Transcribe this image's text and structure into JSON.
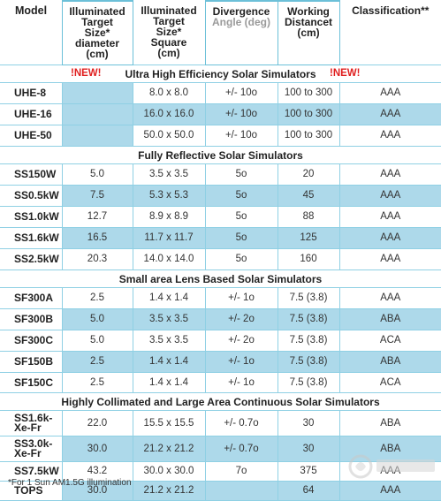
{
  "headers": {
    "model": "Model",
    "diameter": [
      "Illuminated",
      "Target",
      "Size*",
      "diameter",
      "(cm)"
    ],
    "square": [
      "Illuminated",
      "Target",
      "Size*",
      "Square",
      "(cm)"
    ],
    "divergence": [
      "Divergence"
    ],
    "divergence_gray": "Angle (deg)",
    "distance": [
      "Working",
      "Distancet",
      "(cm)"
    ],
    "classification": "Classification**"
  },
  "new_badge": "!NEW!",
  "sections": [
    {
      "title": "Ultra High Efficiency Solar Simulators",
      "new": true,
      "rows": [
        {
          "model": "UHE-8",
          "dia": "",
          "sq": "8.0 x 8.0",
          "div": "+/- 10o",
          "dist": "100 to 300",
          "cls": "AAA"
        },
        {
          "model": "UHE-16",
          "dia": "",
          "sq": "16.0 x 16.0",
          "div": "+/- 10o",
          "dist": "100 to 300",
          "cls": "AAA"
        },
        {
          "model": "UHE-50",
          "dia": "",
          "sq": "50.0 x 50.0",
          "div": "+/- 10o",
          "dist": "100 to 300",
          "cls": "AAA"
        }
      ]
    },
    {
      "title": "Fully Reflective Solar Simulators",
      "new": false,
      "rows": [
        {
          "model": "SS150W",
          "dia": "5.0",
          "sq": "3.5 x 3.5",
          "div": "5o",
          "dist": "20",
          "cls": "AAA"
        },
        {
          "model": "SS0.5kW",
          "dia": "7.5",
          "sq": "5.3 x 5.3",
          "div": "5o",
          "dist": "45",
          "cls": "AAA"
        },
        {
          "model": "SS1.0kW",
          "dia": "12.7",
          "sq": "8.9 x 8.9",
          "div": "5o",
          "dist": "88",
          "cls": "AAA"
        },
        {
          "model": "SS1.6kW",
          "dia": "16.5",
          "sq": "11.7 x 11.7",
          "div": "5o",
          "dist": "125",
          "cls": "AAA"
        },
        {
          "model": "SS2.5kW",
          "dia": "20.3",
          "sq": "14.0 x 14.0",
          "div": "5o",
          "dist": "160",
          "cls": "AAA"
        }
      ]
    },
    {
      "title": "Small area Lens Based Solar Simulators",
      "new": false,
      "rows": [
        {
          "model": "SF300A",
          "dia": "2.5",
          "sq": "1.4 x 1.4",
          "div": "+/- 1o",
          "dist": "7.5 (3.8)",
          "cls": "AAA"
        },
        {
          "model": "SF300B",
          "dia": "5.0",
          "sq": "3.5 x 3.5",
          "div": "+/- 2o",
          "dist": "7.5 (3.8)",
          "cls": "ABA"
        },
        {
          "model": "SF300C",
          "dia": "5.0",
          "sq": "3.5 x 3.5",
          "div": "+/- 2o",
          "dist": "7.5 (3.8)",
          "cls": "ACA"
        },
        {
          "model": "SF150B",
          "dia": "2.5",
          "sq": "1.4 x 1.4",
          "div": "+/- 1o",
          "dist": "7.5 (3.8)",
          "cls": "ABA"
        },
        {
          "model": "SF150C",
          "dia": "2.5",
          "sq": "1.4 x 1.4",
          "div": "+/- 1o",
          "dist": "7.5 (3.8)",
          "cls": "ACA"
        }
      ]
    },
    {
      "title": "Highly Collimated and Large Area Continuous Solar Simulators",
      "new": false,
      "rows": [
        {
          "model": "SS1.6k-Xe-Fr",
          "dia": "22.0",
          "sq": "15.5 x 15.5",
          "div": "+/- 0.7o",
          "dist": "30",
          "cls": "ABA"
        },
        {
          "model": "SS3.0k-Xe-Fr",
          "dia": "30.0",
          "sq": "21.2 x 21.2",
          "div": "+/- 0.7o",
          "dist": "30",
          "cls": "ABA"
        },
        {
          "model": "SS7.5kW",
          "dia": "43.2",
          "sq": "30.0 x 30.0",
          "div": "7o",
          "dist": "375",
          "cls": "AAA"
        },
        {
          "model": "TOPS",
          "dia": "30.0",
          "sq": "21.2 x 21.2",
          "div": "",
          "dist": "64",
          "cls": "AAA"
        }
      ]
    }
  ],
  "footnote": "*For 1 Sun AM1.5G illumination",
  "colors": {
    "accent_border": "#8fd0e4",
    "row_shade": "#add9ea",
    "new_red": "#e02020"
  }
}
